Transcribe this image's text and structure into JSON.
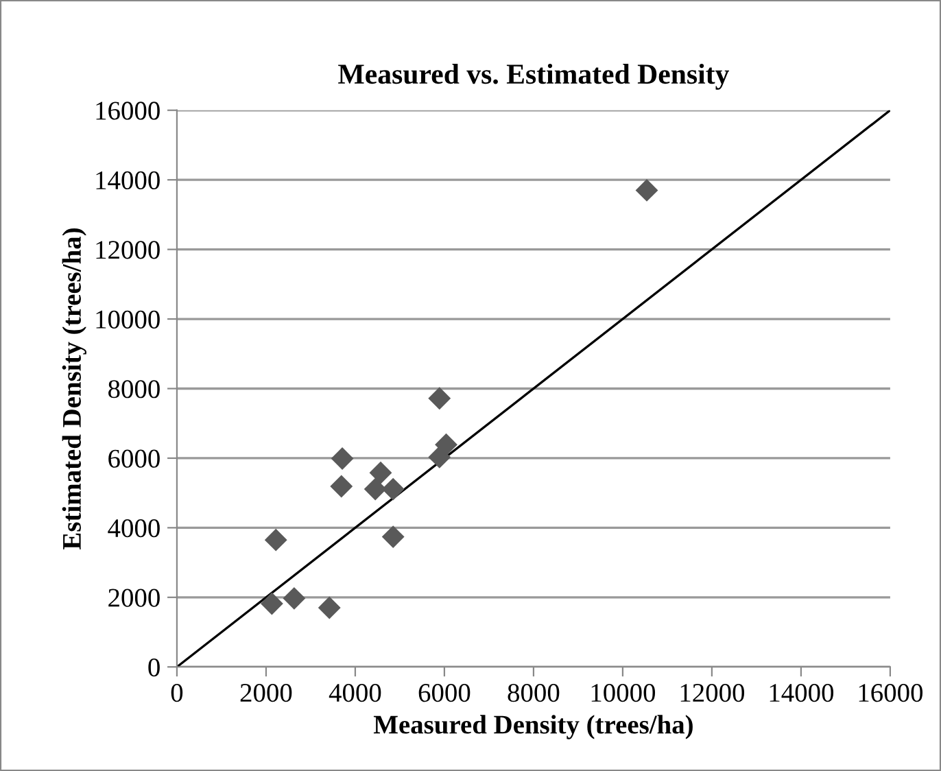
{
  "chart_data": {
    "type": "scatter",
    "title": "Measured vs. Estimated Density",
    "xlabel": "Measured Density (trees/ha)",
    "ylabel": "Estimated Density (trees/ha)",
    "xlim": [
      0,
      16000
    ],
    "ylim": [
      0,
      16000
    ],
    "xticks": [
      0,
      2000,
      4000,
      6000,
      8000,
      10000,
      12000,
      14000,
      16000
    ],
    "yticks": [
      0,
      2000,
      4000,
      6000,
      8000,
      10000,
      12000,
      14000,
      16000
    ],
    "grid": "y",
    "legend": false,
    "series": [
      {
        "color": "#595959",
        "marker": "diamond",
        "x": [
          10540,
          5890,
          6040,
          5890,
          3710,
          3690,
          4570,
          4450,
          4850,
          4850,
          2220,
          2130,
          2630,
          3420
        ],
        "values": [
          13700,
          7720,
          6390,
          6030,
          5990,
          5190,
          5580,
          5110,
          5110,
          3740,
          3650,
          1820,
          1970,
          1700
        ]
      },
      {
        "type": "line",
        "color": "#000000",
        "marker": "none",
        "line_style": "solid",
        "x": [
          0,
          16000
        ],
        "values": [
          0,
          16000
        ]
      }
    ]
  }
}
